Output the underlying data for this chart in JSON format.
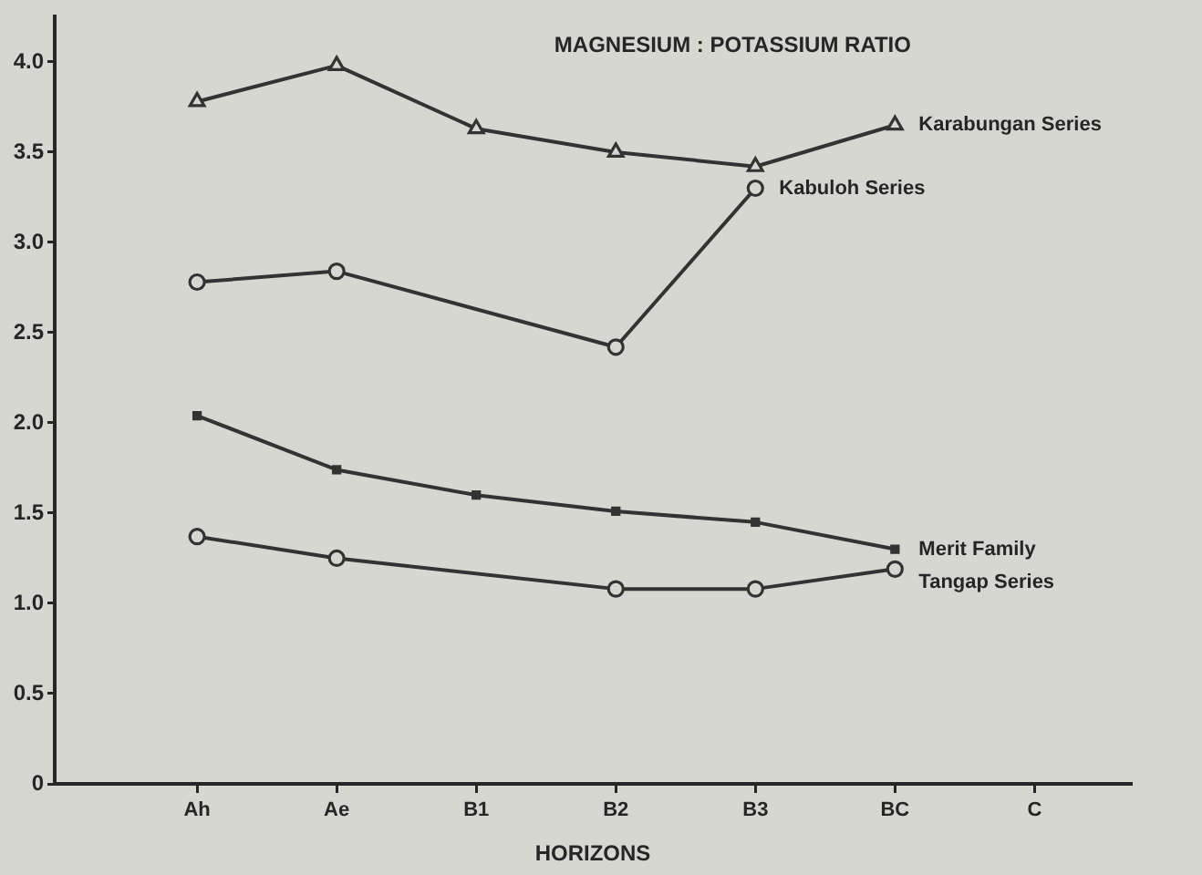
{
  "chart_data": {
    "type": "line",
    "title": "MAGNESIUM : POTASSIUM RATIO",
    "xlabel": "HORIZONS",
    "categories": [
      "Ah",
      "Ae",
      "B1",
      "B2",
      "B3",
      "BC",
      "C"
    ],
    "series": [
      {
        "name": "Karabungan Series",
        "color": "#333333",
        "marker": "triangle",
        "values": [
          3.78,
          3.98,
          3.63,
          3.5,
          3.42,
          3.65,
          null
        ]
      },
      {
        "name": "Kabuloh Series",
        "color": "#333333",
        "marker": "circle",
        "values": [
          2.78,
          2.84,
          null,
          2.42,
          3.3,
          null,
          null
        ]
      },
      {
        "name": "Merit Family",
        "color": "#333333",
        "marker": "square",
        "values": [
          2.04,
          1.74,
          1.6,
          1.51,
          1.45,
          1.3,
          null
        ]
      },
      {
        "name": "Tangap Series",
        "color": "#333333",
        "marker": "circle",
        "values": [
          1.37,
          1.25,
          null,
          1.08,
          1.08,
          1.19,
          null
        ]
      }
    ],
    "ylim": [
      0,
      4.25
    ],
    "yticks": [
      0,
      0.5,
      {
        "value": 1,
        "label": "1.0"
      },
      1.5,
      {
        "value": 2,
        "label": "2.0"
      },
      2.5,
      {
        "value": 3,
        "label": "3.0"
      },
      3.5,
      {
        "value": 4,
        "label": "4.0"
      }
    ],
    "line_style": "solid"
  }
}
